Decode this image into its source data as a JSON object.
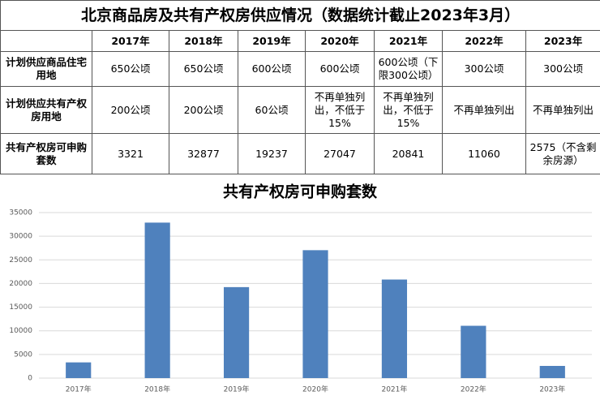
{
  "table": {
    "title": "北京商品房及共有产权房供应情况（数据统计截止2023年3月）",
    "columns": [
      "2017年",
      "2018年",
      "2019年",
      "2020年",
      "2021年",
      "2022年",
      "2023年"
    ],
    "rows": [
      {
        "label": "计划供应商品住宅用地",
        "cells": [
          "650公顷",
          "650公顷",
          "600公顷",
          "600公顷",
          "600公顷（下限300公顷）",
          "300公顷",
          "300公顷"
        ]
      },
      {
        "label": "计划供应共有产权房用地",
        "cells": [
          "200公顷",
          "200公顷",
          "60公顷",
          "不再单独列出，不低于15%",
          "不再单独列出，不低于15%",
          "不再单独列出",
          "不再单独列出"
        ]
      },
      {
        "label": "共有产权房可申购套数",
        "cells": [
          3321,
          32877,
          19237,
          27047,
          20841,
          11060,
          "2575（不含剩余房源）"
        ]
      }
    ]
  },
  "chart_data": {
    "type": "bar",
    "title": "共有产权房可申购套数",
    "categories": [
      "2017年",
      "2018年",
      "2019年",
      "2020年",
      "2021年",
      "2022年",
      "2023年"
    ],
    "values": [
      3321,
      32877,
      19237,
      27047,
      20841,
      11060,
      2575
    ],
    "color": "#4f81bd",
    "ylim": [
      0,
      35000
    ],
    "yticks": [
      0,
      5000,
      10000,
      15000,
      20000,
      25000,
      30000,
      35000
    ],
    "grid": true
  }
}
